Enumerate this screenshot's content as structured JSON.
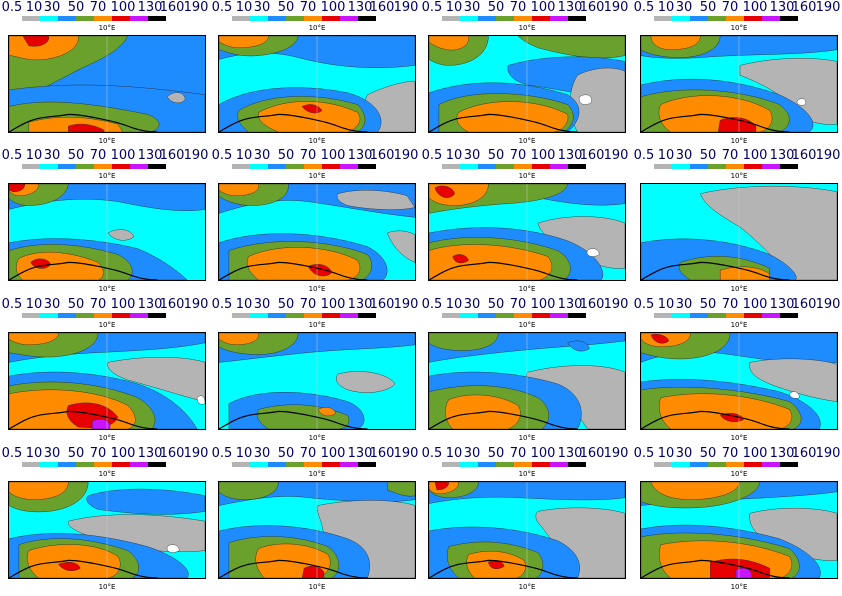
{
  "legend": {
    "labels": [
      "0.5",
      "10",
      "30",
      "50",
      "70",
      "100",
      "130",
      "160",
      "190"
    ],
    "colors": [
      "#b4b4b4",
      "#00ffff",
      "#1e8cff",
      "#6aa02c",
      "#ff8c00",
      "#e60000",
      "#c814ff",
      "#000000"
    ]
  },
  "axis": {
    "lon_label": "10°E"
  },
  "palette": {
    "background": "#00ffff",
    "low": "#b4b4b4",
    "blue": "#1e8cff",
    "green": "#6aa02c",
    "orange": "#ff8c00",
    "red": "#e60000",
    "magenta": "#c814ff",
    "none": "#ffffff"
  },
  "panels": [
    {
      "id": 1,
      "bg": "#1e8cff"
    },
    {
      "id": 2,
      "bg": "#00ffff"
    },
    {
      "id": 3,
      "bg": "#00ffff"
    },
    {
      "id": 4,
      "bg": "#00ffff"
    },
    {
      "id": 5,
      "bg": "#00ffff"
    },
    {
      "id": 6,
      "bg": "#00ffff"
    },
    {
      "id": 7,
      "bg": "#00ffff"
    },
    {
      "id": 8,
      "bg": "#00ffff"
    },
    {
      "id": 9,
      "bg": "#00ffff"
    },
    {
      "id": 10,
      "bg": "#00ffff"
    },
    {
      "id": 11,
      "bg": "#00ffff"
    },
    {
      "id": 12,
      "bg": "#00ffff"
    },
    {
      "id": 13,
      "bg": "#00ffff"
    },
    {
      "id": 14,
      "bg": "#00ffff"
    },
    {
      "id": 15,
      "bg": "#00ffff"
    },
    {
      "id": 16,
      "bg": "#00ffff"
    }
  ]
}
